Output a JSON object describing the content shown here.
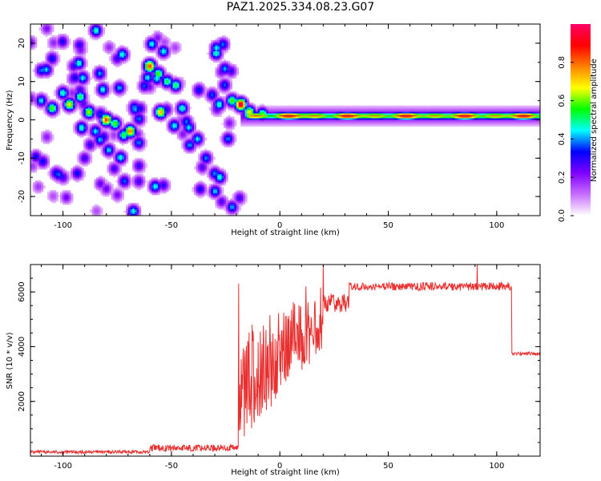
{
  "title": "PAZ1.2025.334.08.23.G07",
  "chart_data": [
    {
      "type": "heatmap",
      "xlabel": "Height of straight line (km)",
      "ylabel": "Frequency (Hz)",
      "xlim": [
        -115,
        120
      ],
      "ylim": [
        -25,
        25
      ],
      "xticks": [
        -100,
        -50,
        0,
        50,
        100
      ],
      "yticks": [
        -20,
        -10,
        0,
        10,
        20
      ],
      "colorbar": {
        "label": "Normalized spectral amplitude",
        "range": [
          0,
          1
        ],
        "ticks": [
          "0.0",
          "0.2",
          "0.4",
          "0.6",
          "0.8"
        ],
        "tick_values": [
          0,
          0.2,
          0.4,
          0.6,
          0.8
        ],
        "colors": [
          "#ffffff",
          "#c86eff",
          "#7f00ff",
          "#0000ff",
          "#00ffff",
          "#00ff00",
          "#ffff00",
          "#ff8000",
          "#ff0000",
          "#ff0066"
        ]
      },
      "blobs": [
        [
          -110,
          5,
          0.45
        ],
        [
          -105,
          3,
          0.6
        ],
        [
          -100,
          7,
          0.5
        ],
        [
          -97,
          4,
          0.7
        ],
        [
          -92,
          6,
          0.55
        ],
        [
          -88,
          2,
          0.65
        ],
        [
          -85,
          -3,
          0.45
        ],
        [
          -80,
          0,
          0.85
        ],
        [
          -76,
          -1,
          0.6
        ],
        [
          -72,
          -4,
          0.55
        ],
        [
          -69,
          -3,
          0.8
        ],
        [
          -65,
          -6,
          0.4
        ],
        [
          -60,
          14,
          0.85
        ],
        [
          -56,
          12,
          0.6
        ],
        [
          -52,
          10,
          0.55
        ],
        [
          -48,
          9,
          0.55
        ],
        [
          -55,
          2,
          0.75
        ],
        [
          -45,
          3,
          0.5
        ],
        [
          -42,
          -2,
          0.45
        ],
        [
          -38,
          -5,
          0.45
        ],
        [
          -34,
          -10,
          0.4
        ],
        [
          -30,
          -14,
          0.4
        ],
        [
          -28,
          4,
          0.5
        ],
        [
          -22,
          5,
          0.6
        ],
        [
          -18,
          4,
          1.0
        ],
        [
          -14,
          2,
          0.7
        ],
        [
          -8,
          1.5,
          0.6
        ],
        [
          -105,
          16,
          0.35
        ],
        [
          -95,
          14,
          0.3
        ],
        [
          -75,
          16,
          0.3
        ],
        [
          -90,
          -10,
          0.3
        ],
        [
          -100,
          -15,
          0.3
        ],
        [
          -80,
          -18,
          0.25
        ],
        [
          -65,
          -12,
          0.3
        ]
      ],
      "band": {
        "x": [
          -18,
          120
        ],
        "center_hz": 1,
        "peak_amplitude": 0.95
      }
    },
    {
      "type": "line",
      "xlabel": "Height of straight line (km)",
      "ylabel": "SNR (10 * v/v)",
      "xlim": [
        -115,
        120
      ],
      "ylim": [
        0,
        7000
      ],
      "xticks": [
        -100,
        -50,
        0,
        50,
        100
      ],
      "yticks": [
        2000,
        4000,
        6000
      ],
      "color": "#e83030",
      "segments": [
        {
          "from": -115,
          "to": -60,
          "level": 150,
          "noise": 120
        },
        {
          "from": -60,
          "to": -19,
          "level": 300,
          "noise": 250
        },
        {
          "from": -19,
          "to": 20,
          "level": 3600,
          "noise": 2800
        },
        {
          "from": 20,
          "to": 32,
          "level": 5600,
          "noise": 700
        },
        {
          "from": 32,
          "to": 107,
          "level": 6200,
          "noise": 300
        },
        {
          "from": 107,
          "to": 120,
          "level": 3750,
          "noise": 120
        }
      ],
      "peaks": [
        [
          20,
          7000
        ],
        [
          91,
          6980
        ],
        [
          -19,
          6300
        ],
        [
          12,
          6200
        ]
      ]
    }
  ]
}
